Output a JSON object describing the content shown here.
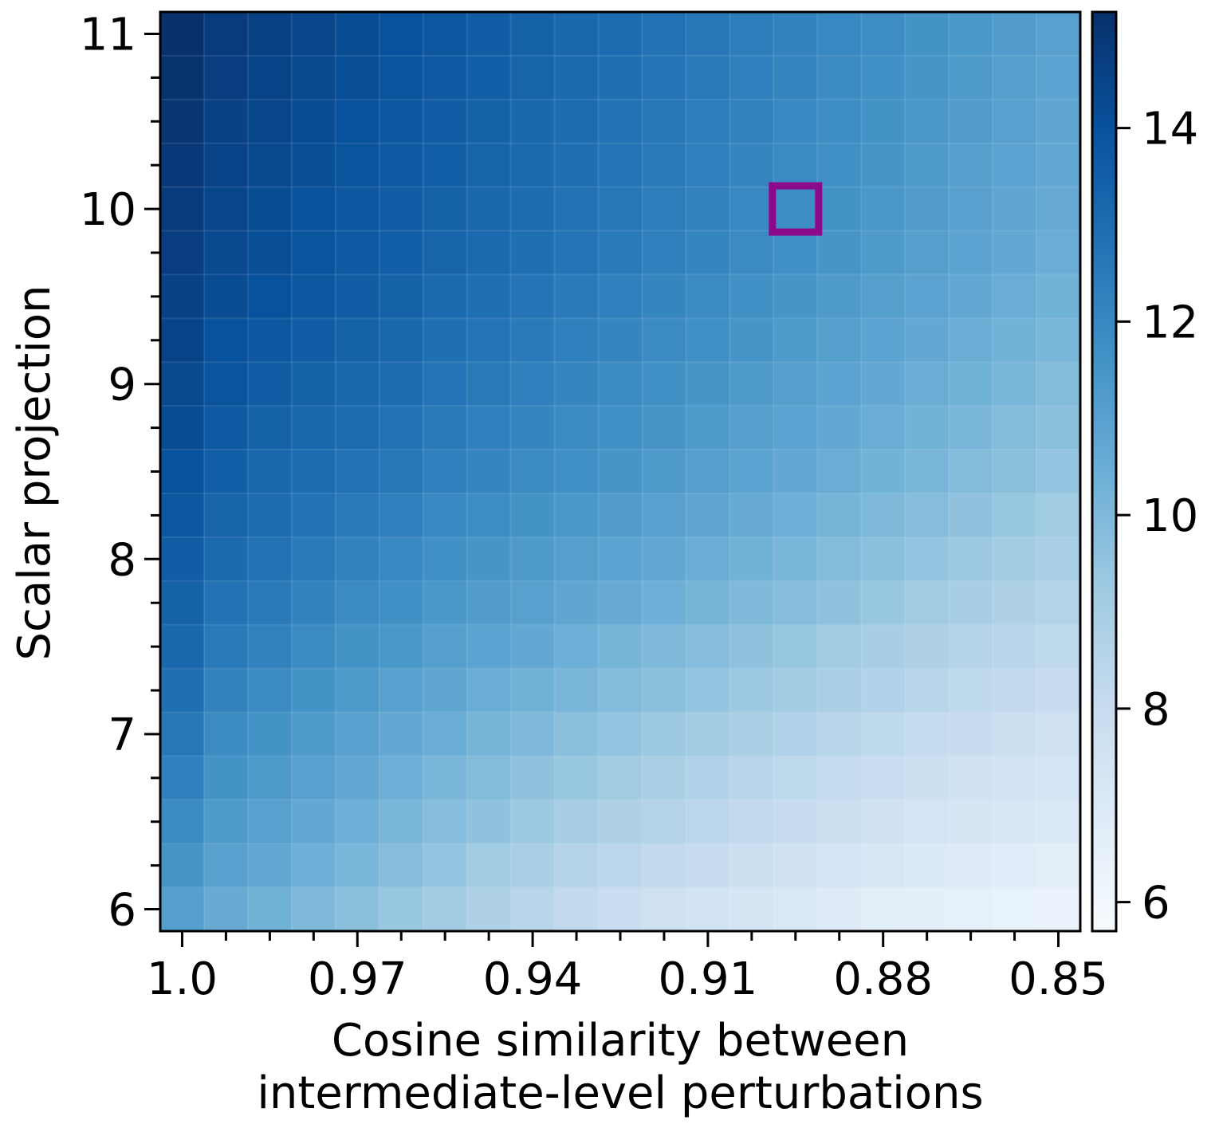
{
  "chart_data": {
    "type": "heatmap",
    "title": "",
    "xlabel_lines": [
      "Cosine similarity between",
      "intermediate-level perturbations"
    ],
    "ylabel": "Scalar projection",
    "x_range": [
      1.0,
      0.85
    ],
    "x_step": 0.0075,
    "x_count": 21,
    "y_range": [
      6.0,
      11.0
    ],
    "y_step": 0.25,
    "y_count": 21,
    "x_ticks": [
      {
        "value": 1.0,
        "label": "1.0"
      },
      {
        "value": 0.97,
        "label": "0.97"
      },
      {
        "value": 0.94,
        "label": "0.94"
      },
      {
        "value": 0.91,
        "label": "0.91"
      },
      {
        "value": 0.88,
        "label": "0.88"
      },
      {
        "value": 0.85,
        "label": "0.85"
      }
    ],
    "y_ticks": [
      {
        "value": 6,
        "label": "6"
      },
      {
        "value": 7,
        "label": "7"
      },
      {
        "value": 8,
        "label": "8"
      },
      {
        "value": 9,
        "label": "9"
      },
      {
        "value": 10,
        "label": "10"
      },
      {
        "value": 11,
        "label": "11"
      }
    ],
    "colorbar": {
      "min": 5.7,
      "max": 15.2,
      "ticks": [
        {
          "value": 6,
          "label": "6"
        },
        {
          "value": 8,
          "label": "8"
        },
        {
          "value": 10,
          "label": "10"
        },
        {
          "value": 12,
          "label": "12"
        },
        {
          "value": 14,
          "label": "14"
        }
      ],
      "colormap": "Blues"
    },
    "values": [
      [
        11.1,
        10.6,
        10.3,
        10.0,
        9.7,
        9.4,
        9.1,
        8.8,
        8.5,
        8.2,
        7.9,
        7.7,
        7.5,
        7.3,
        7.1,
        6.9,
        6.7,
        6.6,
        6.5,
        6.4,
        6.3
      ],
      [
        11.5,
        11.0,
        10.7,
        10.4,
        10.1,
        9.8,
        9.5,
        9.2,
        8.9,
        8.6,
        8.4,
        8.2,
        8.0,
        7.8,
        7.6,
        7.4,
        7.2,
        7.0,
        6.9,
        6.8,
        6.7
      ],
      [
        11.9,
        11.3,
        11.0,
        10.7,
        10.4,
        10.1,
        9.8,
        9.6,
        9.3,
        9.0,
        8.8,
        8.6,
        8.4,
        8.2,
        8.0,
        7.8,
        7.6,
        7.4,
        7.3,
        7.2,
        7.1
      ],
      [
        12.3,
        11.6,
        11.3,
        11.0,
        10.7,
        10.4,
        10.1,
        9.9,
        9.6,
        9.4,
        9.1,
        8.9,
        8.7,
        8.5,
        8.3,
        8.1,
        7.9,
        7.8,
        7.6,
        7.5,
        7.4
      ],
      [
        12.6,
        11.9,
        11.6,
        11.3,
        11.0,
        10.7,
        10.5,
        10.2,
        10.0,
        9.7,
        9.5,
        9.3,
        9.1,
        8.9,
        8.7,
        8.5,
        8.3,
        8.1,
        8.0,
        7.8,
        7.7
      ],
      [
        12.9,
        12.2,
        11.9,
        11.6,
        11.3,
        11.0,
        10.8,
        10.5,
        10.3,
        10.1,
        9.9,
        9.7,
        9.5,
        9.3,
        9.1,
        8.9,
        8.7,
        8.5,
        8.3,
        8.2,
        8.0
      ],
      [
        13.2,
        12.5,
        12.2,
        11.9,
        11.6,
        11.4,
        11.1,
        10.9,
        10.7,
        10.4,
        10.2,
        10.0,
        9.8,
        9.6,
        9.4,
        9.2,
        9.0,
        8.8,
        8.6,
        8.5,
        8.3
      ],
      [
        13.4,
        12.8,
        12.5,
        12.2,
        11.9,
        11.7,
        11.4,
        11.2,
        11.0,
        10.8,
        10.6,
        10.4,
        10.2,
        10.0,
        9.8,
        9.6,
        9.4,
        9.2,
        9.0,
        8.8,
        8.6
      ],
      [
        13.6,
        13.1,
        12.8,
        12.5,
        12.2,
        12.0,
        11.7,
        11.5,
        11.3,
        11.1,
        10.9,
        10.7,
        10.5,
        10.3,
        10.1,
        9.9,
        9.7,
        9.5,
        9.3,
        9.1,
        8.9
      ],
      [
        13.8,
        13.3,
        13.0,
        12.8,
        12.5,
        12.3,
        12.0,
        11.8,
        11.6,
        11.4,
        11.2,
        11.0,
        10.8,
        10.6,
        10.4,
        10.2,
        10.0,
        9.8,
        9.6,
        9.4,
        9.2
      ],
      [
        14.0,
        13.5,
        13.2,
        13.0,
        12.8,
        12.6,
        12.3,
        12.1,
        11.9,
        11.7,
        11.5,
        11.3,
        11.1,
        10.9,
        10.7,
        10.5,
        10.3,
        10.1,
        9.9,
        9.7,
        9.5
      ],
      [
        14.2,
        13.7,
        13.4,
        13.2,
        13.0,
        12.8,
        12.5,
        12.3,
        12.1,
        11.9,
        11.7,
        11.5,
        11.3,
        11.1,
        10.9,
        10.7,
        10.5,
        10.3,
        10.1,
        9.9,
        9.7
      ],
      [
        14.3,
        13.9,
        13.6,
        13.4,
        13.2,
        13.0,
        12.7,
        12.5,
        12.3,
        12.1,
        11.9,
        11.7,
        11.5,
        11.3,
        11.1,
        10.9,
        10.7,
        10.5,
        10.3,
        10.1,
        9.9
      ],
      [
        14.5,
        14.0,
        13.8,
        13.6,
        13.4,
        13.2,
        12.9,
        12.7,
        12.5,
        12.3,
        12.1,
        11.9,
        11.7,
        11.5,
        11.3,
        11.1,
        10.9,
        10.7,
        10.5,
        10.3,
        10.1
      ],
      [
        14.6,
        14.2,
        14.0,
        13.8,
        13.6,
        13.4,
        13.1,
        12.9,
        12.7,
        12.5,
        12.3,
        12.1,
        11.9,
        11.7,
        11.5,
        11.3,
        11.1,
        10.9,
        10.7,
        10.5,
        10.3
      ],
      [
        14.7,
        14.3,
        14.1,
        13.9,
        13.7,
        13.5,
        13.3,
        13.1,
        12.9,
        12.7,
        12.5,
        12.3,
        12.1,
        11.9,
        11.7,
        11.5,
        11.3,
        11.1,
        10.9,
        10.7,
        10.5
      ],
      [
        14.8,
        14.4,
        14.2,
        14.0,
        13.8,
        13.6,
        13.4,
        13.2,
        13.0,
        12.8,
        12.6,
        12.4,
        12.2,
        12.0,
        11.8,
        11.6,
        11.4,
        11.2,
        11.0,
        10.8,
        10.6
      ],
      [
        14.9,
        14.5,
        14.3,
        14.1,
        13.9,
        13.7,
        13.5,
        13.3,
        13.1,
        12.9,
        12.7,
        12.5,
        12.3,
        12.1,
        11.9,
        11.7,
        11.5,
        11.3,
        11.1,
        10.9,
        10.7
      ],
      [
        15.0,
        14.6,
        14.4,
        14.2,
        14.0,
        13.8,
        13.6,
        13.4,
        13.2,
        13.0,
        12.8,
        12.6,
        12.4,
        12.2,
        12.0,
        11.8,
        11.6,
        11.4,
        11.2,
        11.0,
        10.8
      ],
      [
        15.1,
        14.7,
        14.5,
        14.3,
        14.1,
        13.9,
        13.7,
        13.5,
        13.3,
        13.1,
        12.9,
        12.7,
        12.5,
        12.3,
        12.1,
        11.9,
        11.7,
        11.5,
        11.3,
        11.1,
        10.9
      ],
      [
        15.2,
        14.8,
        14.6,
        14.4,
        14.2,
        14.0,
        13.8,
        13.6,
        13.4,
        13.2,
        13.0,
        12.8,
        12.6,
        12.4,
        12.2,
        12.0,
        11.8,
        11.6,
        11.4,
        11.2,
        11.0
      ]
    ],
    "highlight": {
      "x": 0.895,
      "y": 10.0,
      "color": "#8b0a8b"
    }
  }
}
